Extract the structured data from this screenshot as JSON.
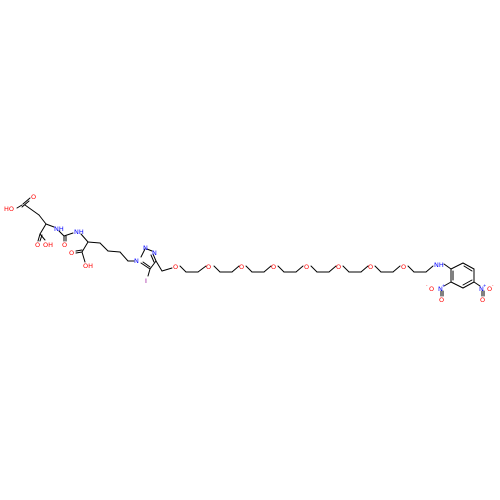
{
  "colors": {
    "bond": "#000000",
    "oxygen": "#ff0000",
    "nitrogen": "#0000ff",
    "iodine": "#940094",
    "background": "#ffffff"
  },
  "atoms": {
    "glu_acid_label": "HO",
    "glu_acid_o": "O",
    "glu_acid2_label": "OH",
    "glu_acid2_o": "O",
    "urea_nh1": "NH",
    "urea_o": "O",
    "urea_nh2": "NH",
    "lys_acid_o": "O",
    "lys_acid_label": "OH",
    "tri_n1": "N",
    "tri_n2": "N",
    "tri_n3": "N",
    "iodo": "I",
    "ether_o1": "O",
    "ether_o2": "O",
    "ether_o3": "O",
    "ether_o4": "O",
    "ether_o5": "O",
    "ether_o6": "O",
    "ether_o7": "O",
    "ether_o8": "O",
    "amine_nh": "NH",
    "nitro1_n": "N",
    "nitro1_o_plus": "+",
    "nitro1_o1": "O",
    "nitro1_o2": "O",
    "nitro1_o_minus": "-",
    "nitro2_n": "N",
    "nitro2_o_plus": "+",
    "nitro2_o1": "O",
    "nitro2_o2": "O",
    "nitro2_o_minus": "-"
  }
}
